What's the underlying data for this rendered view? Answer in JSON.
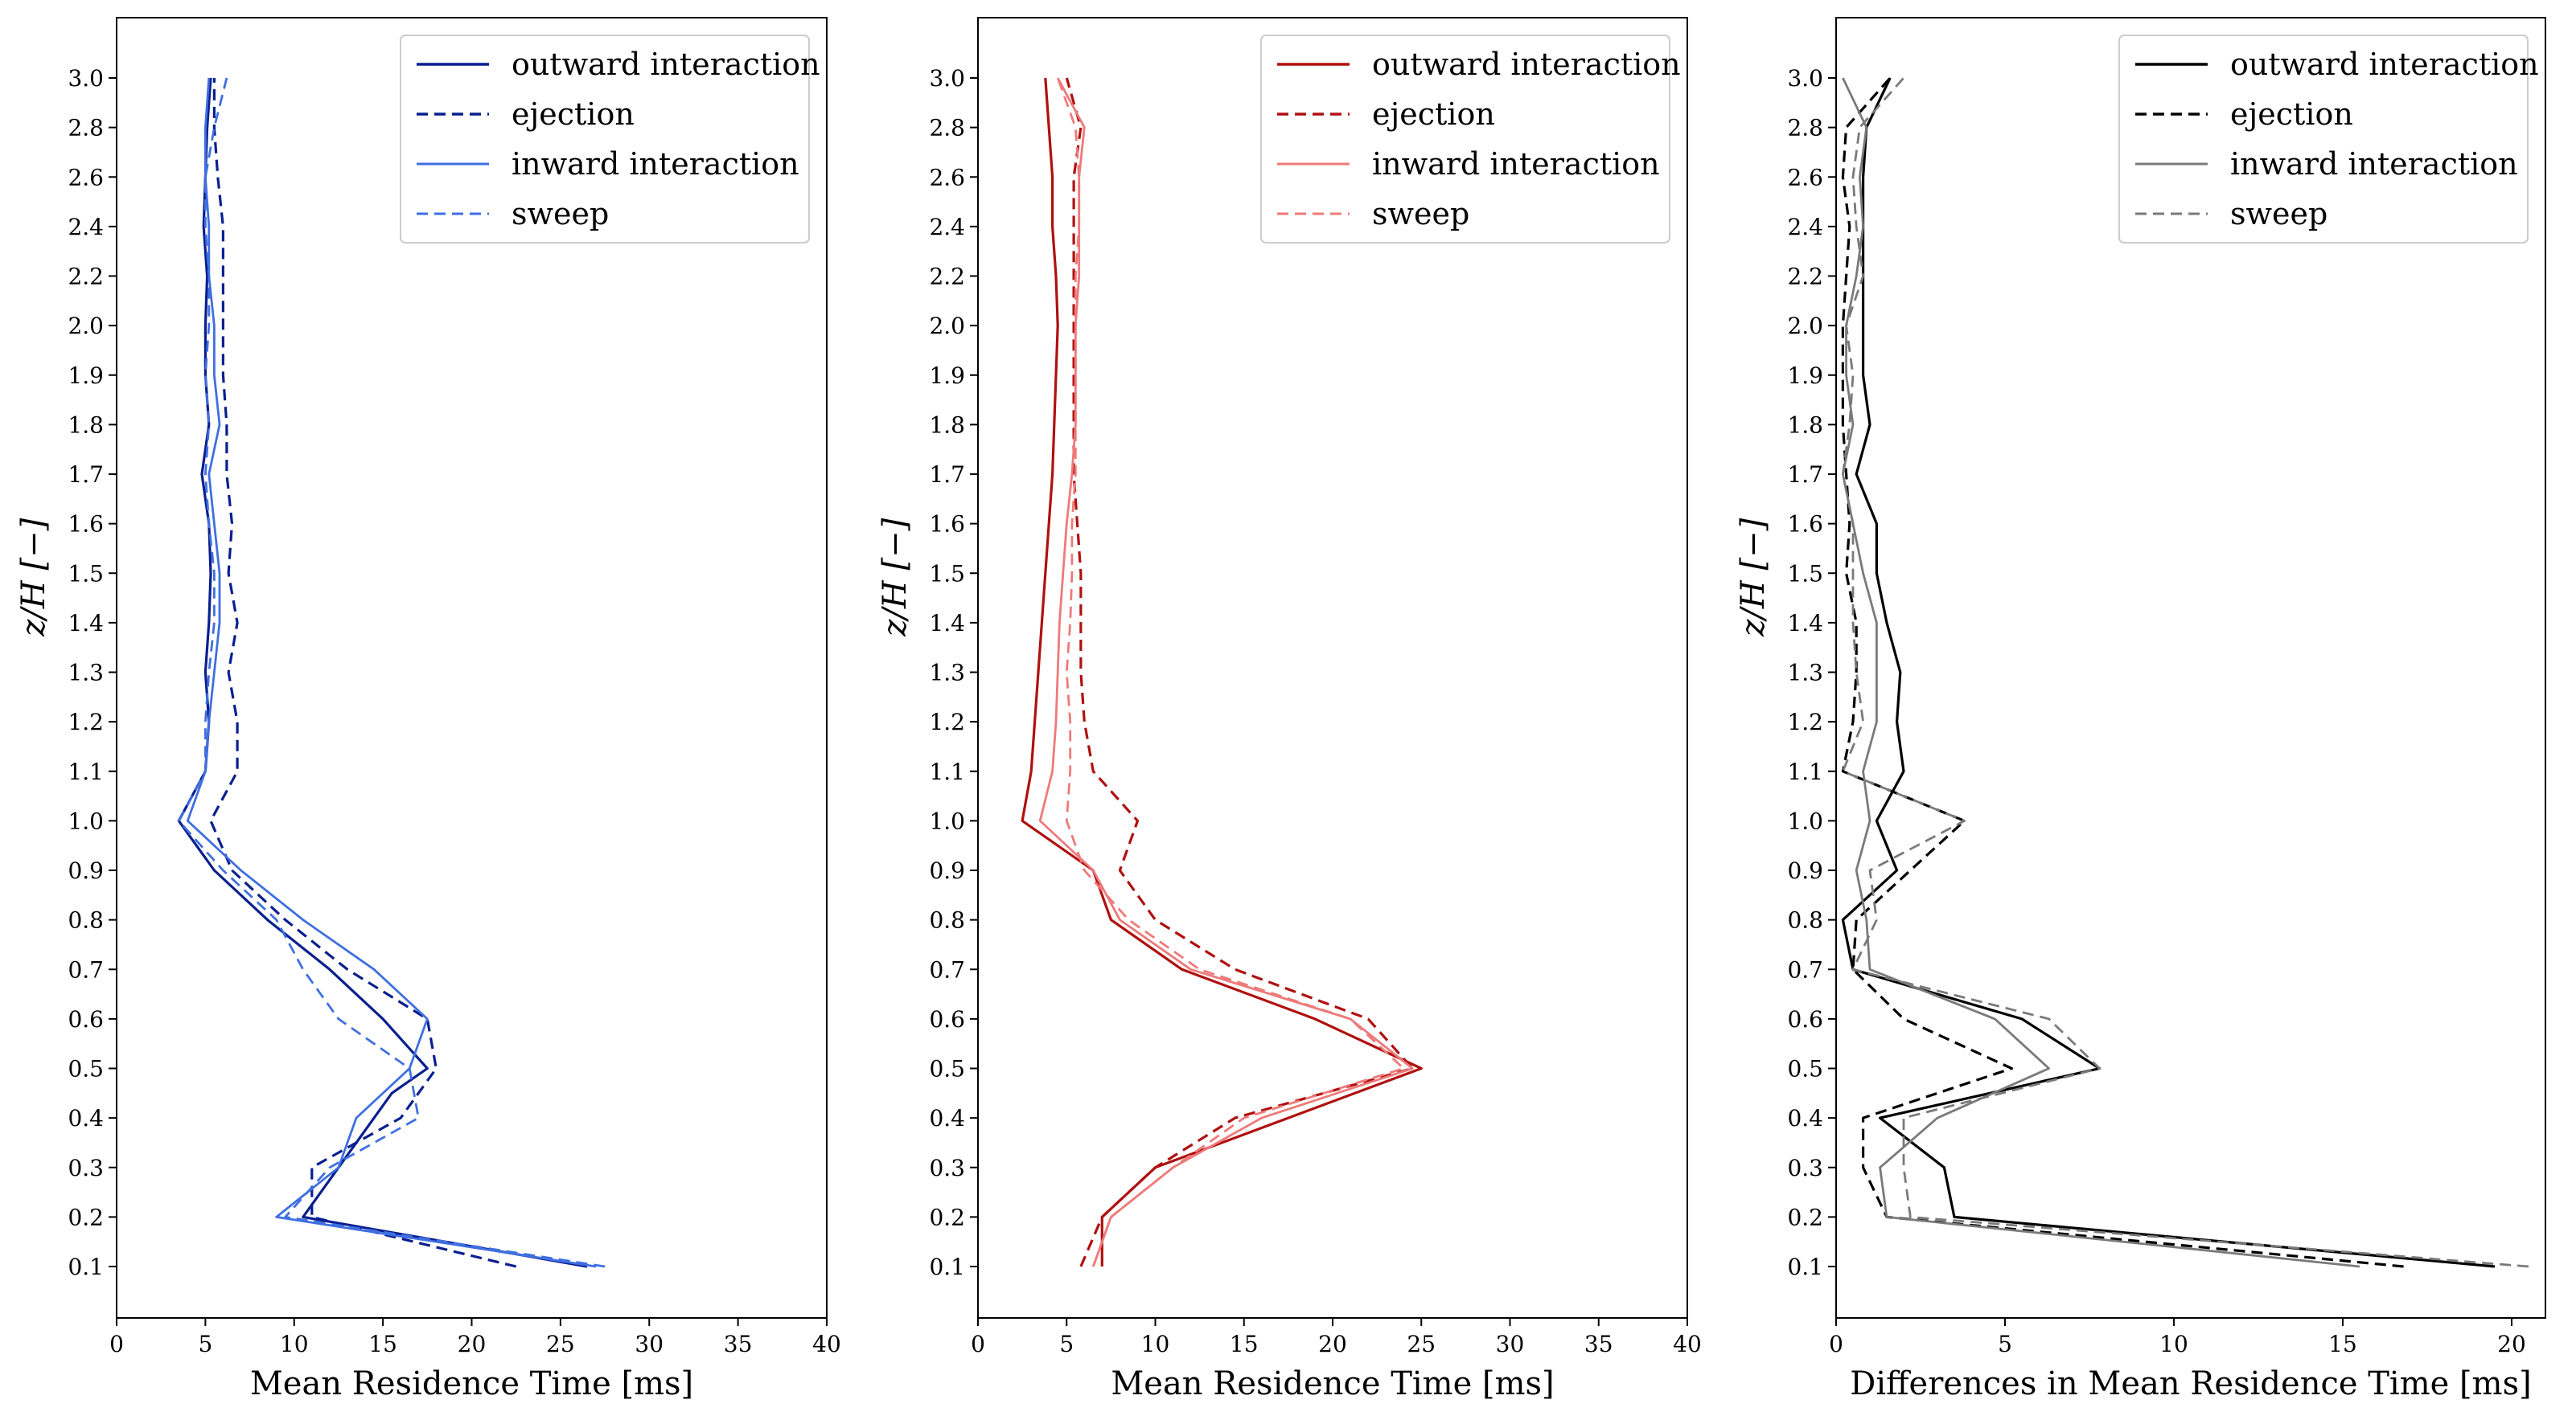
{
  "colors": {
    "p1": {
      "outward": "#0a1f8f",
      "ejection": "#0a1f8f",
      "inward": "#3f6fe0",
      "sweep": "#3f6fe0"
    },
    "p2": {
      "outward": "#b01010",
      "ejection": "#b01010",
      "inward": "#ee7a7a",
      "sweep": "#ee7a7a"
    },
    "p3": {
      "outward": "#000000",
      "ejection": "#000000",
      "inward": "#7a7a7a",
      "sweep": "#7a7a7a"
    }
  },
  "chart_data": [
    {
      "type": "line",
      "id": "p1",
      "xlabel": "Mean Residence Time [ms]",
      "ylabel": "z/H [−]",
      "xlim": [
        0,
        40
      ],
      "xticks": [
        0,
        5,
        10,
        15,
        20,
        25,
        30,
        35,
        40
      ],
      "yticks": [
        0.1,
        0.2,
        0.3,
        0.4,
        0.5,
        0.6,
        0.7,
        0.8,
        0.9,
        1.0,
        1.1,
        1.2,
        1.3,
        1.4,
        1.5,
        1.6,
        1.7,
        1.8,
        1.9,
        2.0,
        2.2,
        2.4,
        2.6,
        2.8,
        3.0
      ],
      "ytick_labels": [
        "0.1",
        "0.2",
        "0.3",
        "0.4",
        "0.5",
        "0.6",
        "0.7",
        "0.8",
        "0.9",
        "1.0",
        "1.1",
        "1.2",
        "1.3",
        "1.4",
        "1.5",
        "1.6",
        "1.7",
        "1.8",
        "1.9",
        "2.0",
        "2.2",
        "2.4",
        "2.6",
        "2.8",
        "3.0"
      ],
      "legend": [
        "outward interaction",
        "ejection",
        "inward interaction",
        "sweep"
      ],
      "legend_position": "top-right",
      "series": [
        {
          "name": "outward interaction",
          "style": "solid",
          "color_key": "outward",
          "x": [
            26.5,
            10.5,
            12.5,
            14.5,
            15.5,
            17.5,
            15.0,
            12.0,
            8.5,
            5.5,
            3.5,
            5.0,
            5.2,
            5.0,
            5.2,
            5.3,
            5.2,
            4.8,
            5.2,
            5.0,
            5.0,
            5.1,
            4.9,
            5.0,
            5.1,
            5.3
          ],
          "y": [
            0.1,
            0.2,
            0.3,
            0.4,
            0.45,
            0.5,
            0.6,
            0.7,
            0.8,
            0.9,
            1.0,
            1.1,
            1.2,
            1.3,
            1.4,
            1.5,
            1.6,
            1.7,
            1.8,
            1.9,
            2.0,
            2.2,
            2.4,
            2.6,
            2.8,
            3.0
          ]
        },
        {
          "name": "ejection",
          "style": "dashed",
          "color_key": "ejection",
          "x": [
            22.5,
            11.0,
            11.0,
            16.0,
            18.0,
            17.5,
            13.0,
            9.5,
            6.5,
            5.3,
            6.8,
            6.8,
            6.3,
            6.8,
            6.3,
            6.5,
            6.2,
            6.2,
            6.0,
            6.0,
            6.0,
            6.0,
            5.7,
            5.5,
            5.5
          ],
          "y": [
            0.1,
            0.2,
            0.3,
            0.4,
            0.5,
            0.6,
            0.7,
            0.8,
            0.9,
            1.0,
            1.1,
            1.2,
            1.3,
            1.4,
            1.5,
            1.6,
            1.7,
            1.8,
            1.9,
            2.0,
            2.2,
            2.4,
            2.6,
            2.8,
            3.0
          ]
        },
        {
          "name": "inward interaction",
          "style": "solid",
          "color_key": "inward",
          "x": [
            27.0,
            9.0,
            12.5,
            13.5,
            16.5,
            17.5,
            14.5,
            10.5,
            7.0,
            4.0,
            5.0,
            5.2,
            5.5,
            5.8,
            5.8,
            5.5,
            5.2,
            5.8,
            5.5,
            5.5,
            5.2,
            5.2,
            5.0,
            5.0,
            5.2
          ],
          "y": [
            0.1,
            0.2,
            0.3,
            0.4,
            0.5,
            0.6,
            0.7,
            0.8,
            0.9,
            1.0,
            1.1,
            1.2,
            1.3,
            1.4,
            1.5,
            1.6,
            1.7,
            1.8,
            1.9,
            2.0,
            2.2,
            2.4,
            2.6,
            2.8,
            3.0
          ]
        },
        {
          "name": "sweep",
          "style": "dashed",
          "color_key": "sweep",
          "x": [
            27.5,
            9.5,
            12.0,
            17.0,
            16.5,
            12.5,
            10.5,
            9.0,
            6.0,
            3.5,
            5.0,
            5.0,
            5.2,
            5.5,
            5.5,
            5.2,
            5.0,
            5.2,
            5.0,
            5.2,
            5.2,
            5.0,
            5.0,
            5.5,
            6.2
          ],
          "y": [
            0.1,
            0.2,
            0.3,
            0.4,
            0.5,
            0.6,
            0.7,
            0.8,
            0.9,
            1.0,
            1.1,
            1.2,
            1.3,
            1.4,
            1.5,
            1.6,
            1.7,
            1.8,
            1.9,
            2.0,
            2.2,
            2.4,
            2.6,
            2.8,
            3.0
          ]
        }
      ]
    },
    {
      "type": "line",
      "id": "p2",
      "xlabel": "Mean Residence Time [ms]",
      "ylabel": "z/H [−]",
      "xlim": [
        0,
        40
      ],
      "xticks": [
        0,
        5,
        10,
        15,
        20,
        25,
        30,
        35,
        40
      ],
      "yticks": [
        0.1,
        0.2,
        0.3,
        0.4,
        0.5,
        0.6,
        0.7,
        0.8,
        0.9,
        1.0,
        1.1,
        1.2,
        1.3,
        1.4,
        1.5,
        1.6,
        1.7,
        1.8,
        1.9,
        2.0,
        2.2,
        2.4,
        2.6,
        2.8,
        3.0
      ],
      "ytick_labels": [
        "0.1",
        "0.2",
        "0.3",
        "0.4",
        "0.5",
        "0.6",
        "0.7",
        "0.8",
        "0.9",
        "1.0",
        "1.1",
        "1.2",
        "1.3",
        "1.4",
        "1.5",
        "1.6",
        "1.7",
        "1.8",
        "1.9",
        "2.0",
        "2.2",
        "2.4",
        "2.6",
        "2.8",
        "3.0"
      ],
      "legend": [
        "outward interaction",
        "ejection",
        "inward interaction",
        "sweep"
      ],
      "legend_position": "top-right",
      "series": [
        {
          "name": "outward interaction",
          "style": "solid",
          "color_key": "outward",
          "x": [
            7.0,
            7.0,
            10.0,
            17.5,
            25.0,
            19.0,
            11.5,
            7.5,
            6.5,
            2.5,
            3.0,
            3.2,
            3.4,
            3.6,
            3.8,
            4.0,
            4.2,
            4.3,
            4.4,
            4.5,
            4.4,
            4.2,
            4.2,
            4.0,
            3.8
          ],
          "y": [
            0.1,
            0.2,
            0.3,
            0.4,
            0.5,
            0.6,
            0.7,
            0.8,
            0.9,
            1.0,
            1.1,
            1.2,
            1.3,
            1.4,
            1.5,
            1.6,
            1.7,
            1.8,
            1.9,
            2.0,
            2.2,
            2.4,
            2.6,
            2.8,
            3.0
          ]
        },
        {
          "name": "ejection",
          "style": "dashed",
          "color_key": "ejection",
          "x": [
            5.8,
            7.0,
            10.0,
            14.5,
            24.5,
            22.0,
            14.5,
            10.0,
            8.0,
            9.0,
            6.5,
            6.0,
            5.8,
            5.8,
            5.8,
            5.6,
            5.4,
            5.4,
            5.4,
            5.4,
            5.4,
            5.4,
            5.4,
            5.8,
            5.0
          ],
          "y": [
            0.1,
            0.2,
            0.3,
            0.4,
            0.5,
            0.6,
            0.7,
            0.8,
            0.9,
            1.0,
            1.1,
            1.2,
            1.3,
            1.4,
            1.5,
            1.6,
            1.7,
            1.8,
            1.9,
            2.0,
            2.2,
            2.4,
            2.6,
            2.8,
            3.0
          ]
        },
        {
          "name": "inward interaction",
          "style": "solid",
          "color_key": "inward",
          "x": [
            6.5,
            7.5,
            11.0,
            16.0,
            24.5,
            21.0,
            12.0,
            8.0,
            6.5,
            3.5,
            4.2,
            4.4,
            4.5,
            4.6,
            4.8,
            5.0,
            5.3,
            5.5,
            5.5,
            5.5,
            5.7,
            5.7,
            5.7,
            6.0,
            4.5
          ],
          "y": [
            0.1,
            0.2,
            0.3,
            0.4,
            0.5,
            0.6,
            0.7,
            0.8,
            0.9,
            1.0,
            1.1,
            1.2,
            1.3,
            1.4,
            1.5,
            1.6,
            1.7,
            1.8,
            1.9,
            2.0,
            2.2,
            2.4,
            2.6,
            2.8,
            3.0
          ]
        },
        {
          "name": "sweep",
          "style": "dashed",
          "color_key": "sweep",
          "x": [
            6.5,
            7.5,
            11.0,
            15.0,
            24.0,
            21.0,
            12.5,
            8.5,
            6.0,
            5.0,
            5.2,
            5.2,
            5.0,
            5.2,
            5.3,
            5.3,
            5.5,
            5.5,
            5.5,
            5.5,
            5.5,
            5.7,
            5.7,
            5.5,
            4.5
          ],
          "y": [
            0.1,
            0.2,
            0.3,
            0.4,
            0.5,
            0.6,
            0.7,
            0.8,
            0.9,
            1.0,
            1.1,
            1.2,
            1.3,
            1.4,
            1.5,
            1.6,
            1.7,
            1.8,
            1.9,
            2.0,
            2.2,
            2.4,
            2.6,
            2.8,
            3.0
          ]
        }
      ]
    },
    {
      "type": "line",
      "id": "p3",
      "xlabel": "Differences in Mean Residence Time [ms]",
      "ylabel": "z/H [−]",
      "xlim": [
        0,
        21
      ],
      "xticks": [
        0,
        5,
        10,
        15,
        20
      ],
      "yticks": [
        0.1,
        0.2,
        0.3,
        0.4,
        0.5,
        0.6,
        0.7,
        0.8,
        0.9,
        1.0,
        1.1,
        1.2,
        1.3,
        1.4,
        1.5,
        1.6,
        1.7,
        1.8,
        1.9,
        2.0,
        2.2,
        2.4,
        2.6,
        2.8,
        3.0
      ],
      "ytick_labels": [
        "0.1",
        "0.2",
        "0.3",
        "0.4",
        "0.5",
        "0.6",
        "0.7",
        "0.8",
        "0.9",
        "1.0",
        "1.1",
        "1.2",
        "1.3",
        "1.4",
        "1.5",
        "1.6",
        "1.7",
        "1.8",
        "1.9",
        "2.0",
        "2.2",
        "2.4",
        "2.6",
        "2.8",
        "3.0"
      ],
      "legend": [
        "outward interaction",
        "ejection",
        "inward interaction",
        "sweep"
      ],
      "legend_position": "top-right",
      "series": [
        {
          "name": "outward interaction",
          "style": "solid",
          "color_key": "outward",
          "x": [
            19.5,
            3.5,
            3.2,
            1.3,
            7.8,
            5.5,
            0.5,
            0.2,
            1.8,
            1.2,
            2.0,
            1.8,
            1.9,
            1.5,
            1.2,
            1.2,
            0.6,
            1.0,
            0.8,
            0.8,
            0.8,
            0.8,
            0.8,
            0.9,
            1.6
          ],
          "y": [
            0.1,
            0.2,
            0.3,
            0.4,
            0.5,
            0.6,
            0.7,
            0.8,
            0.9,
            1.0,
            1.1,
            1.2,
            1.3,
            1.4,
            1.5,
            1.6,
            1.7,
            1.8,
            1.9,
            2.0,
            2.2,
            2.4,
            2.6,
            2.8,
            3.0
          ]
        },
        {
          "name": "ejection",
          "style": "dashed",
          "color_key": "ejection",
          "x": [
            16.8,
            1.5,
            0.8,
            0.8,
            5.2,
            2.0,
            0.5,
            0.6,
            2.2,
            3.8,
            0.2,
            0.5,
            0.6,
            0.6,
            0.3,
            0.4,
            0.3,
            0.2,
            0.2,
            0.2,
            0.3,
            0.4,
            0.2,
            0.3,
            1.6
          ],
          "y": [
            0.1,
            0.2,
            0.3,
            0.4,
            0.5,
            0.6,
            0.7,
            0.8,
            0.9,
            1.0,
            1.1,
            1.2,
            1.3,
            1.4,
            1.5,
            1.6,
            1.7,
            1.8,
            1.9,
            2.0,
            2.2,
            2.4,
            2.6,
            2.8,
            3.0
          ]
        },
        {
          "name": "inward interaction",
          "style": "solid",
          "color_key": "inward",
          "x": [
            15.5,
            1.5,
            1.3,
            3.0,
            6.3,
            4.7,
            1.0,
            0.9,
            0.6,
            1.0,
            0.8,
            1.2,
            1.2,
            1.2,
            0.8,
            0.5,
            0.2,
            0.5,
            0.3,
            0.3,
            0.6,
            0.8,
            0.7,
            0.9,
            0.2
          ],
          "y": [
            0.1,
            0.2,
            0.3,
            0.4,
            0.5,
            0.6,
            0.7,
            0.8,
            0.9,
            1.0,
            1.1,
            1.2,
            1.3,
            1.4,
            1.5,
            1.6,
            1.7,
            1.8,
            1.9,
            2.0,
            2.2,
            2.4,
            2.6,
            2.8,
            3.0
          ]
        },
        {
          "name": "sweep",
          "style": "dashed",
          "color_key": "sweep",
          "x": [
            20.5,
            2.2,
            2.0,
            2.0,
            7.8,
            6.3,
            0.5,
            1.2,
            1.0,
            3.8,
            0.2,
            0.8,
            0.6,
            0.5,
            0.5,
            0.5,
            0.2,
            0.4,
            0.5,
            0.3,
            0.8,
            0.6,
            0.5,
            0.7,
            2.0
          ],
          "y": [
            0.1,
            0.2,
            0.3,
            0.4,
            0.5,
            0.6,
            0.7,
            0.8,
            0.9,
            1.0,
            1.1,
            1.2,
            1.3,
            1.4,
            1.5,
            1.6,
            1.7,
            1.8,
            1.9,
            2.0,
            2.2,
            2.4,
            2.6,
            2.8,
            3.0
          ]
        }
      ]
    }
  ]
}
